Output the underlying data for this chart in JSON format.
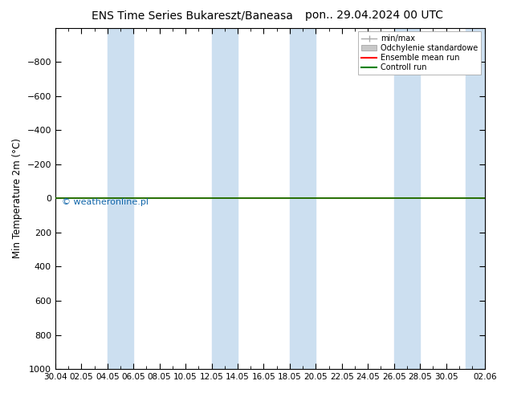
{
  "title_left": "ENS Time Series Bukareszt/Baneasa",
  "title_right": "pon.. 29.04.2024 00 UTC",
  "ylabel": "Min Temperature 2m (°C)",
  "watermark": "© weatheronline.pl",
  "ylim_bottom": 1000,
  "ylim_top": -1000,
  "yticks": [
    -800,
    -600,
    -400,
    -200,
    0,
    200,
    400,
    600,
    800,
    1000
  ],
  "x_start": 0,
  "x_end": 33,
  "x_tick_labels": [
    "30.04",
    "02.05",
    "04.05",
    "06.05",
    "08.05",
    "10.05",
    "12.05",
    "14.05",
    "16.05",
    "18.05",
    "20.05",
    "22.05",
    "24.05",
    "26.05",
    "28.05",
    "30.05",
    "02.06"
  ],
  "x_tick_positions": [
    0,
    2,
    4,
    6,
    8,
    10,
    12,
    14,
    16,
    18,
    20,
    22,
    24,
    26,
    28,
    30,
    33
  ],
  "shaded_columns": [
    [
      4,
      6
    ],
    [
      12,
      14
    ],
    [
      18,
      20
    ],
    [
      26,
      28
    ],
    [
      31.5,
      33
    ]
  ],
  "shaded_color": "#ccdff0",
  "ensemble_mean_color": "#ff0000",
  "control_run_color": "#008000",
  "background_color": "#ffffff",
  "legend_items": [
    {
      "label": "min/max"
    },
    {
      "label": "Odchylenie standardowe"
    },
    {
      "label": "Ensemble mean run",
      "color": "#ff0000"
    },
    {
      "label": "Controll run",
      "color": "#008000"
    }
  ]
}
